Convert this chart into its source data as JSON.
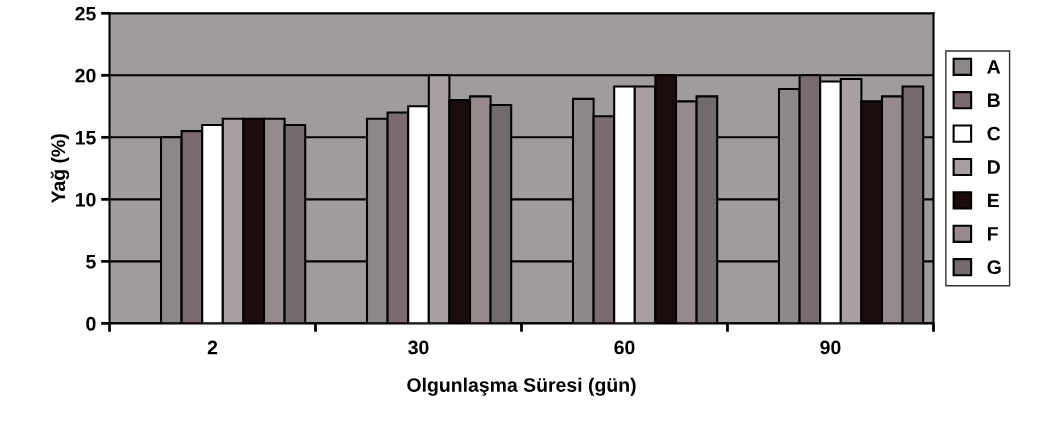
{
  "chart_data": {
    "type": "bar",
    "xlabel": "Olgunlaşma Süresi (gün)",
    "ylabel": "Yağ (%)",
    "categories": [
      "2",
      "30",
      "60",
      "90"
    ],
    "series": [
      {
        "name": "A",
        "color": "#8c8888",
        "values": [
          15,
          16.5,
          18.1,
          18.9
        ]
      },
      {
        "name": "B",
        "color": "#7a6c6e",
        "values": [
          15.5,
          17,
          16.7,
          20
        ]
      },
      {
        "name": "C",
        "color": "#ffffff",
        "values": [
          16,
          17.5,
          19.1,
          19.5
        ]
      },
      {
        "name": "D",
        "color": "#a8a0a0",
        "values": [
          16.5,
          20,
          19.1,
          19.7
        ]
      },
      {
        "name": "E",
        "color": "#1c0c0e",
        "values": [
          16.5,
          18,
          20,
          17.9
        ]
      },
      {
        "name": "F",
        "color": "#958b8c",
        "values": [
          16.5,
          18.3,
          17.9,
          18.3
        ]
      },
      {
        "name": "G",
        "color": "#726a6b",
        "values": [
          16,
          17.6,
          18.3,
          19.1
        ]
      }
    ],
    "ylim": [
      0,
      25
    ],
    "yticks": [
      0,
      5,
      10,
      15,
      20,
      25
    ],
    "grid": "y",
    "legend": "right"
  }
}
